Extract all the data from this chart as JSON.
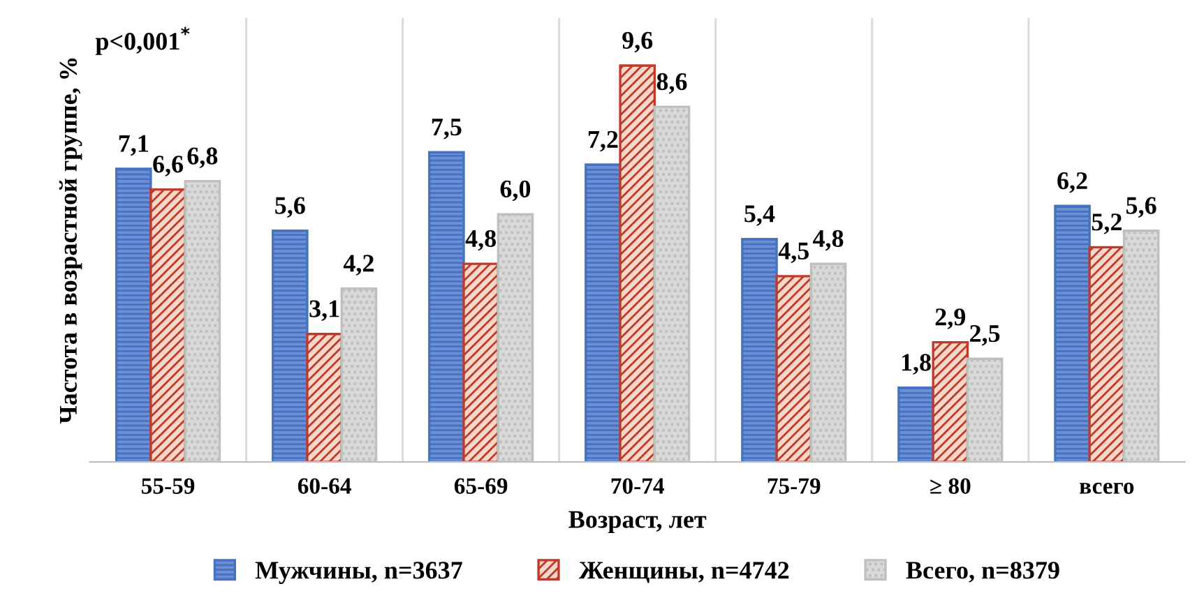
{
  "chart_data": {
    "type": "bar",
    "xlabel": "Возраст, лет",
    "ylabel": "Частота в возрастной группе, %",
    "annotations": [
      "p<0,001$^{*}$"
    ],
    "categories": [
      "55-59",
      "60-64",
      "65-69",
      "70-74",
      "75-79",
      "≥ 80",
      "всего"
    ],
    "series": [
      {
        "name": "Мужчины, n=3637",
        "color": "#4472c4",
        "values": [
          7.1,
          5.6,
          7.5,
          7.2,
          5.4,
          1.8,
          6.2
        ],
        "value_labels": [
          "7,1",
          "5,6",
          "7,5",
          "7,2",
          "5,4",
          "1,8",
          "6,2"
        ]
      },
      {
        "name": "Женщины, n=4742",
        "color": "#c0392b",
        "values": [
          6.6,
          3.1,
          4.8,
          9.6,
          4.5,
          2.9,
          5.2
        ],
        "value_labels": [
          "6,6",
          "3,1",
          "4,8",
          "9,6",
          "4,5",
          "2,9",
          "5,2"
        ]
      },
      {
        "name": "Всего, n=8379",
        "color": "#bfbfbf",
        "values": [
          6.8,
          4.2,
          6.0,
          8.6,
          4.8,
          2.5,
          5.6
        ],
        "value_labels": [
          "6,8",
          "4,2",
          "6,0",
          "8,6",
          "4,8",
          "2,5",
          "5,6"
        ]
      }
    ],
    "grid": "x",
    "legend": "bottom",
    "tick_labels": "x"
  }
}
